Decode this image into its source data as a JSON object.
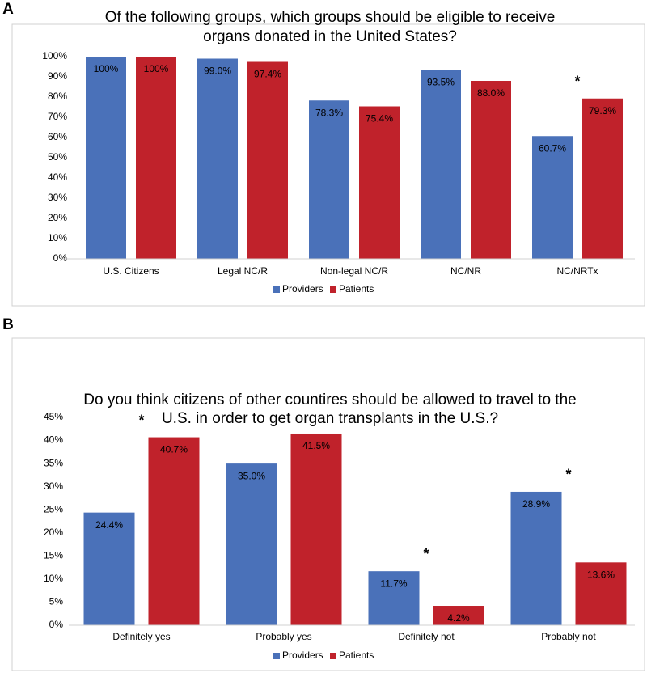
{
  "chart_data": [
    {
      "type": "bar",
      "panel_label": "A",
      "title": [
        "Of the following groups, which groups should be eligible to receive",
        "organs donated in the United States?"
      ],
      "categories": [
        "U.S. Citizens",
        "Legal NC/R",
        "Non-legal NC/R",
        "NC/NR",
        "NC/NRTx"
      ],
      "series": [
        {
          "name": "Providers",
          "color": "#4a71b9",
          "values": [
            100,
            99.0,
            78.3,
            93.5,
            60.7
          ],
          "value_labels": [
            "100%",
            "99.0%",
            "78.3%",
            "93.5%",
            "60.7%"
          ]
        },
        {
          "name": "Patients",
          "color": "#c0222b",
          "values": [
            100,
            97.4,
            75.4,
            88.0,
            79.3
          ],
          "value_labels": [
            "100%",
            "97.4%",
            "75.4%",
            "88.0%",
            "79.3%"
          ]
        }
      ],
      "ylim": [
        0,
        100
      ],
      "yticks": [
        {
          "value": 0,
          "label": "0%"
        },
        {
          "value": 10,
          "label": "10%"
        },
        {
          "value": 20,
          "label": "20%"
        },
        {
          "value": 30,
          "label": "30%"
        },
        {
          "value": 40,
          "label": "40%"
        },
        {
          "value": 50,
          "label": "50%"
        },
        {
          "value": 60,
          "label": "60%"
        },
        {
          "value": 70,
          "label": "70%"
        },
        {
          "value": 80,
          "label": "80%"
        },
        {
          "value": 90,
          "label": "90%"
        },
        {
          "value": 100,
          "label": "100%"
        }
      ],
      "grid": false,
      "legend": "bottom",
      "annotations": [
        {
          "text": "*",
          "category": "NC/NRTx"
        }
      ]
    },
    {
      "type": "bar",
      "panel_label": "B",
      "title": [
        "Do you think citizens of other countires should be allowed to travel to the",
        "U.S. in order to get organ transplants in the U.S.?"
      ],
      "categories": [
        "Definitely yes",
        "Probably yes",
        "Definitely not",
        "Probably not"
      ],
      "series": [
        {
          "name": "Providers",
          "color": "#4a71b9",
          "values": [
            24.4,
            35.0,
            11.7,
            28.9
          ],
          "value_labels": [
            "24.4%",
            "35.0%",
            "11.7%",
            "28.9%"
          ]
        },
        {
          "name": "Patients",
          "color": "#c0222b",
          "values": [
            40.7,
            41.5,
            4.2,
            13.6
          ],
          "value_labels": [
            "40.7%",
            "41.5%",
            "4.2%",
            "13.6%"
          ]
        }
      ],
      "ylim": [
        0,
        45
      ],
      "yticks": [
        {
          "value": 0,
          "label": "0%"
        },
        {
          "value": 5,
          "label": "5%"
        },
        {
          "value": 10,
          "label": "10%"
        },
        {
          "value": 15,
          "label": "15%"
        },
        {
          "value": 20,
          "label": "20%"
        },
        {
          "value": 25,
          "label": "25%"
        },
        {
          "value": 30,
          "label": "30%"
        },
        {
          "value": 35,
          "label": "35%"
        },
        {
          "value": 40,
          "label": "40%"
        },
        {
          "value": 45,
          "label": "45%"
        }
      ],
      "grid": false,
      "legend": "bottom",
      "annotations": [
        {
          "text": "*",
          "category": "Definitely yes"
        },
        {
          "text": "*",
          "category": "Definitely not"
        },
        {
          "text": "*",
          "category": "Probably not"
        }
      ]
    }
  ]
}
